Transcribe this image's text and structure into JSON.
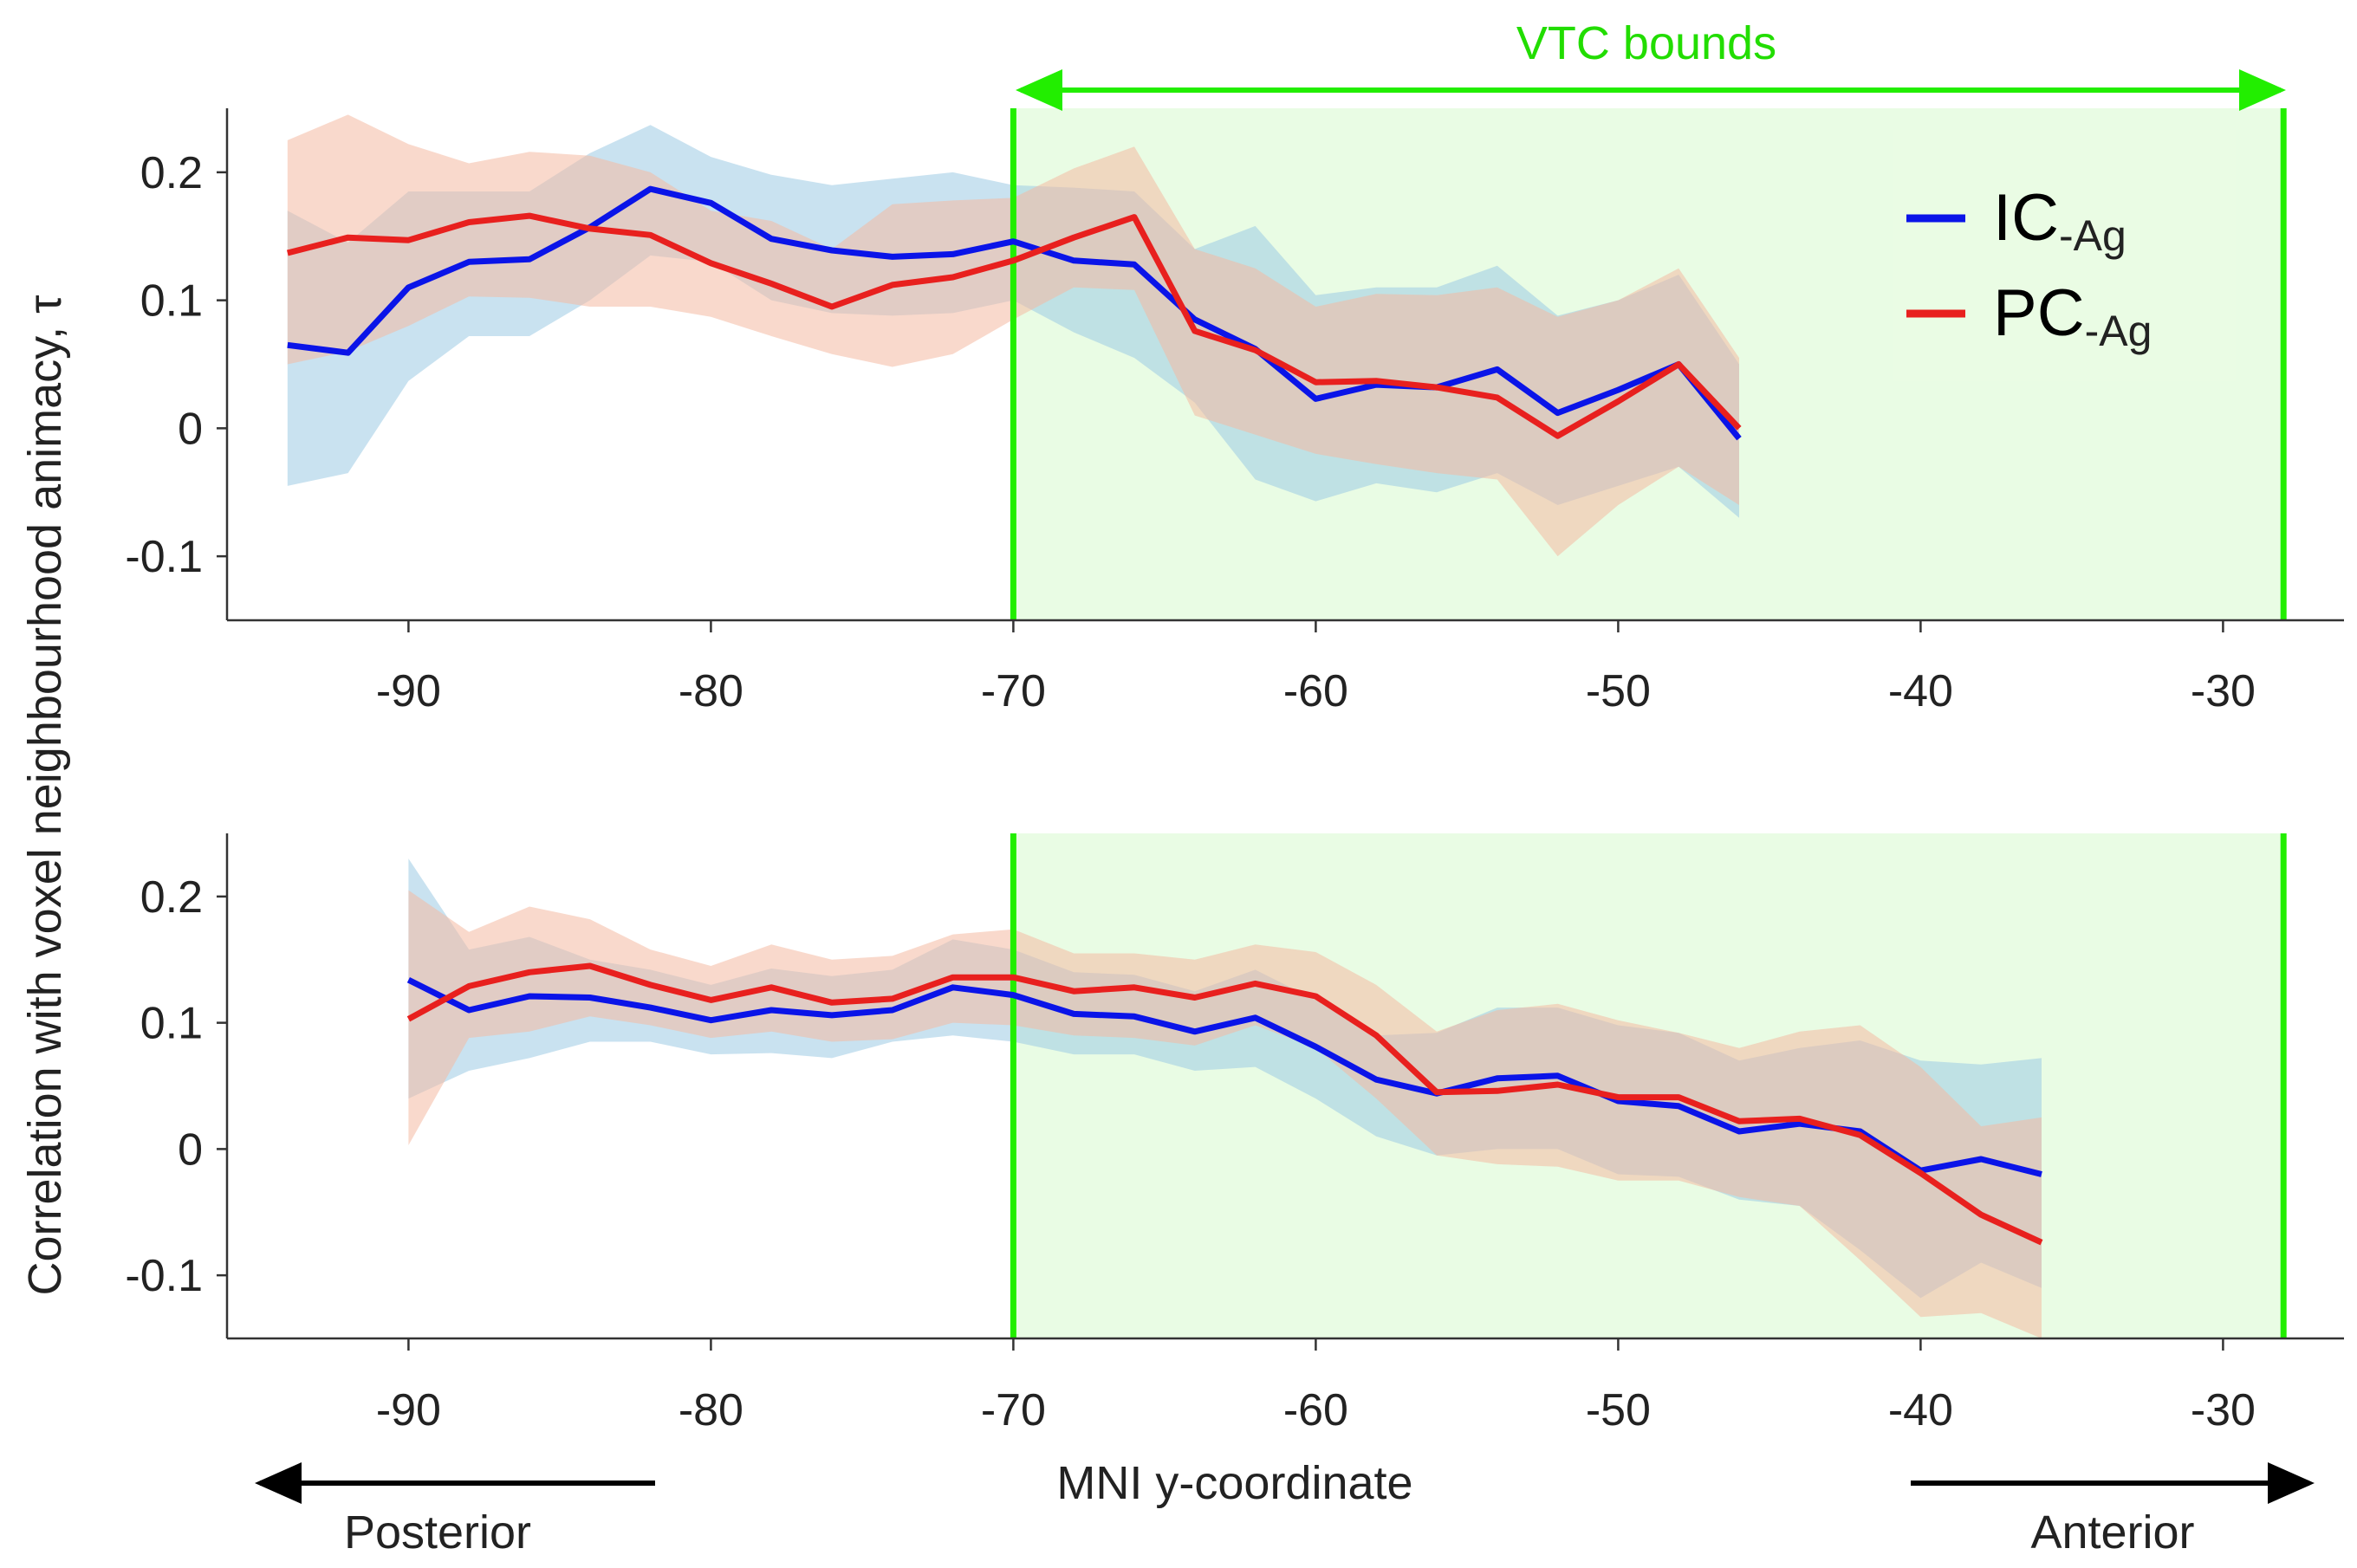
{
  "figure": {
    "ylabel": "Correlation with voxel neighbourhood animacy, τ",
    "xlabel": "MNI y-coordinate",
    "posterior_label": "Posterior",
    "anterior_label": "Anterior",
    "vtc_label": "VTC bounds"
  },
  "legend": {
    "entries": [
      {
        "main": "IC",
        "sub": "-Ag",
        "color": "#0a14e8"
      },
      {
        "main": "PC",
        "sub": "-Ag",
        "color": "#e8201e"
      }
    ]
  },
  "colors": {
    "ic_line": "#0a14e8",
    "pc_line": "#e8201e",
    "ic_band": "#9ccbe4",
    "pc_band": "#f4b9a2",
    "vtc_line": "#22ee00",
    "vtc_fill": "#e9fce4",
    "axis": "#333333"
  },
  "chart_data": [
    {
      "type": "line",
      "panel": "top",
      "xlim": [
        -96,
        -26
      ],
      "ylim": [
        -0.15,
        0.25
      ],
      "xticks": [
        -90,
        -80,
        -70,
        -60,
        -50,
        -40,
        -30
      ],
      "xtick_labels": [
        "-90",
        "-80",
        "-70",
        "-60",
        "-50",
        "-40",
        "-30"
      ],
      "yticks": [
        0.2,
        0.1,
        0,
        -0.1
      ],
      "ytick_labels": [
        "0.2",
        "0.1",
        "0",
        "-0.1"
      ],
      "vtc_bounds": [
        -70,
        -28
      ],
      "series": [
        {
          "name": "IC-Ag",
          "x": [
            -94,
            -92,
            -90,
            -88,
            -86,
            -84,
            -82,
            -80,
            -78,
            -76,
            -74,
            -72,
            -70,
            -68,
            -66,
            -64,
            -62,
            -60,
            -58,
            -56,
            -54,
            -52,
            -50,
            -48,
            -46
          ],
          "y": [
            0.065,
            0.059,
            0.11,
            0.13,
            0.132,
            0.157,
            0.187,
            0.176,
            0.148,
            0.139,
            0.134,
            0.136,
            0.146,
            0.131,
            0.128,
            0.085,
            0.062,
            0.023,
            0.034,
            0.032,
            0.046,
            0.012,
            0.03,
            0.05,
            -0.008
          ],
          "lower": [
            -0.045,
            -0.035,
            0.037,
            0.072,
            0.072,
            0.1,
            0.135,
            0.13,
            0.1,
            0.09,
            0.088,
            0.09,
            0.1,
            0.075,
            0.055,
            0.02,
            -0.04,
            -0.057,
            -0.043,
            -0.05,
            -0.035,
            -0.06,
            -0.045,
            -0.03,
            -0.07
          ],
          "upper": [
            0.17,
            0.145,
            0.185,
            0.185,
            0.185,
            0.215,
            0.237,
            0.212,
            0.198,
            0.19,
            0.195,
            0.2,
            0.19,
            0.188,
            0.185,
            0.14,
            0.158,
            0.104,
            0.11,
            0.11,
            0.127,
            0.088,
            0.1,
            0.12,
            0.05
          ]
        },
        {
          "name": "PC-Ag",
          "x": [
            -94,
            -92,
            -90,
            -88,
            -86,
            -84,
            -82,
            -80,
            -78,
            -76,
            -74,
            -72,
            -70,
            -68,
            -66,
            -64,
            -62,
            -60,
            -58,
            -56,
            -54,
            -52,
            -50,
            -48,
            -46
          ],
          "y": [
            0.137,
            0.149,
            0.147,
            0.161,
            0.166,
            0.156,
            0.151,
            0.129,
            0.113,
            0.095,
            0.112,
            0.118,
            0.131,
            0.149,
            0.165,
            0.076,
            0.061,
            0.036,
            0.037,
            0.032,
            0.024,
            -0.006,
            0.021,
            0.05,
            0.0
          ],
          "lower": [
            0.05,
            0.06,
            0.08,
            0.103,
            0.102,
            0.095,
            0.095,
            0.087,
            0.072,
            0.058,
            0.048,
            0.058,
            0.085,
            0.11,
            0.108,
            0.01,
            -0.005,
            -0.02,
            -0.028,
            -0.035,
            -0.04,
            -0.1,
            -0.06,
            -0.03,
            -0.06
          ],
          "upper": [
            0.225,
            0.245,
            0.222,
            0.207,
            0.216,
            0.213,
            0.2,
            0.17,
            0.162,
            0.14,
            0.175,
            0.178,
            0.18,
            0.203,
            0.22,
            0.14,
            0.125,
            0.095,
            0.105,
            0.104,
            0.11,
            0.087,
            0.1,
            0.125,
            0.055
          ]
        }
      ]
    },
    {
      "type": "line",
      "panel": "bottom",
      "xlim": [
        -96,
        -26
      ],
      "ylim": [
        -0.15,
        0.25
      ],
      "xticks": [
        -90,
        -80,
        -70,
        -60,
        -50,
        -40,
        -30
      ],
      "xtick_labels": [
        "-90",
        "-80",
        "-70",
        "-60",
        "-50",
        "-40",
        "-30"
      ],
      "yticks": [
        0.2,
        0.1,
        0,
        -0.1
      ],
      "ytick_labels": [
        "0.2",
        "0.1",
        "0",
        "-0.1"
      ],
      "vtc_bounds": [
        -70,
        -28
      ],
      "series": [
        {
          "name": "IC-Ag",
          "x": [
            -90,
            -88,
            -86,
            -84,
            -82,
            -80,
            -78,
            -76,
            -74,
            -72,
            -70,
            -68,
            -66,
            -64,
            -62,
            -60,
            -58,
            -56,
            -54,
            -52,
            -50,
            -48,
            -46,
            -44,
            -42,
            -40,
            -38,
            -36
          ],
          "y": [
            0.134,
            0.11,
            0.121,
            0.12,
            0.112,
            0.102,
            0.11,
            0.106,
            0.11,
            0.128,
            0.122,
            0.107,
            0.105,
            0.093,
            0.104,
            0.081,
            0.055,
            0.044,
            0.056,
            0.058,
            0.038,
            0.034,
            0.014,
            0.02,
            0.014,
            -0.017,
            -0.008,
            -0.02
          ],
          "lower": [
            0.04,
            0.062,
            0.072,
            0.085,
            0.085,
            0.075,
            0.076,
            0.072,
            0.085,
            0.09,
            0.085,
            0.075,
            0.075,
            0.062,
            0.065,
            0.04,
            0.01,
            -0.005,
            0.0,
            0.0,
            -0.02,
            -0.022,
            -0.04,
            -0.045,
            -0.08,
            -0.118,
            -0.09,
            -0.11
          ],
          "upper": [
            0.23,
            0.158,
            0.168,
            0.15,
            0.142,
            0.13,
            0.143,
            0.137,
            0.142,
            0.166,
            0.158,
            0.14,
            0.138,
            0.125,
            0.142,
            0.118,
            0.09,
            0.092,
            0.112,
            0.112,
            0.098,
            0.092,
            0.07,
            0.08,
            0.086,
            0.07,
            0.067,
            0.072
          ]
        },
        {
          "name": "PC-Ag",
          "x": [
            -90,
            -88,
            -86,
            -84,
            -82,
            -80,
            -78,
            -76,
            -74,
            -72,
            -70,
            -68,
            -66,
            -64,
            -62,
            -60,
            -58,
            -56,
            -54,
            -52,
            -50,
            -48,
            -46,
            -44,
            -42,
            -40,
            -38,
            -36
          ],
          "y": [
            0.103,
            0.129,
            0.14,
            0.145,
            0.13,
            0.118,
            0.128,
            0.116,
            0.119,
            0.136,
            0.136,
            0.125,
            0.128,
            0.12,
            0.131,
            0.121,
            0.09,
            0.045,
            0.046,
            0.051,
            0.041,
            0.041,
            0.022,
            0.024,
            0.011,
            -0.019,
            -0.052,
            -0.074
          ],
          "lower": [
            0.003,
            0.088,
            0.093,
            0.105,
            0.098,
            0.088,
            0.093,
            0.085,
            0.087,
            0.1,
            0.098,
            0.09,
            0.088,
            0.082,
            0.098,
            0.08,
            0.04,
            -0.005,
            -0.012,
            -0.014,
            -0.025,
            -0.025,
            -0.038,
            -0.045,
            -0.088,
            -0.133,
            -0.13,
            -0.15
          ],
          "upper": [
            0.205,
            0.172,
            0.192,
            0.182,
            0.158,
            0.145,
            0.162,
            0.15,
            0.153,
            0.17,
            0.174,
            0.155,
            0.155,
            0.15,
            0.162,
            0.156,
            0.13,
            0.093,
            0.11,
            0.115,
            0.102,
            0.092,
            0.08,
            0.093,
            0.098,
            0.065,
            0.018,
            0.025
          ]
        }
      ]
    }
  ]
}
